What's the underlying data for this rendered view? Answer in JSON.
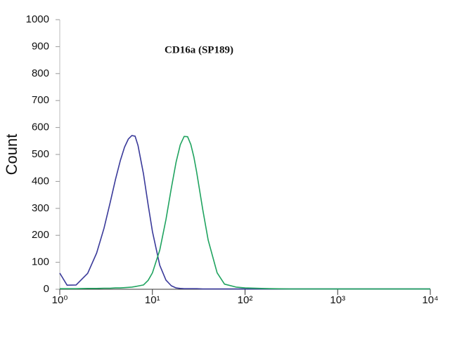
{
  "chart_data": {
    "type": "line",
    "title": "CD16a (SP189)",
    "y_label": "Count",
    "x_scale": "log",
    "x": [
      1,
      1.2,
      1.5,
      2,
      2.5,
      3,
      3.5,
      4,
      4.5,
      5,
      5.5,
      6,
      6.5,
      7,
      8,
      9,
      10,
      12,
      14,
      16,
      18,
      20,
      22,
      24,
      26,
      28,
      30,
      35,
      40,
      50,
      60,
      80,
      100,
      150,
      200,
      300,
      500,
      1000,
      10000
    ],
    "series": [
      {
        "color": "#3a3a9a",
        "values": [
          60,
          15,
          16,
          59,
          134,
          226,
          322,
          408,
          477,
          527,
          557,
          570,
          568,
          533,
          429,
          313,
          214,
          89,
          34,
          13,
          5,
          3,
          2,
          2,
          2,
          2,
          2,
          1,
          1,
          1,
          1,
          1,
          1,
          1,
          1,
          1,
          1,
          1,
          1
        ]
      },
      {
        "color": "#1fa35f",
        "values": [
          2,
          2,
          2,
          3,
          3,
          4,
          4,
          5,
          5,
          6,
          7,
          8,
          10,
          12,
          16,
          33,
          61,
          145,
          258,
          374,
          471,
          536,
          567,
          566,
          537,
          491,
          436,
          295,
          182,
          61,
          19,
          8,
          5,
          3,
          2,
          1,
          1,
          1,
          1
        ]
      }
    ],
    "xlim": [
      1,
      10000
    ],
    "xticks": [
      {
        "value": 1,
        "label": "10⁰"
      },
      {
        "value": 10,
        "label": "10¹"
      },
      {
        "value": 100,
        "label": "10²"
      },
      {
        "value": 1000,
        "label": "10³"
      },
      {
        "value": 10000,
        "label": "10⁴"
      }
    ],
    "ylim": [
      0,
      1000
    ],
    "yticks": [
      0,
      100,
      200,
      300,
      400,
      500,
      600,
      700,
      800,
      900,
      1000
    ]
  }
}
